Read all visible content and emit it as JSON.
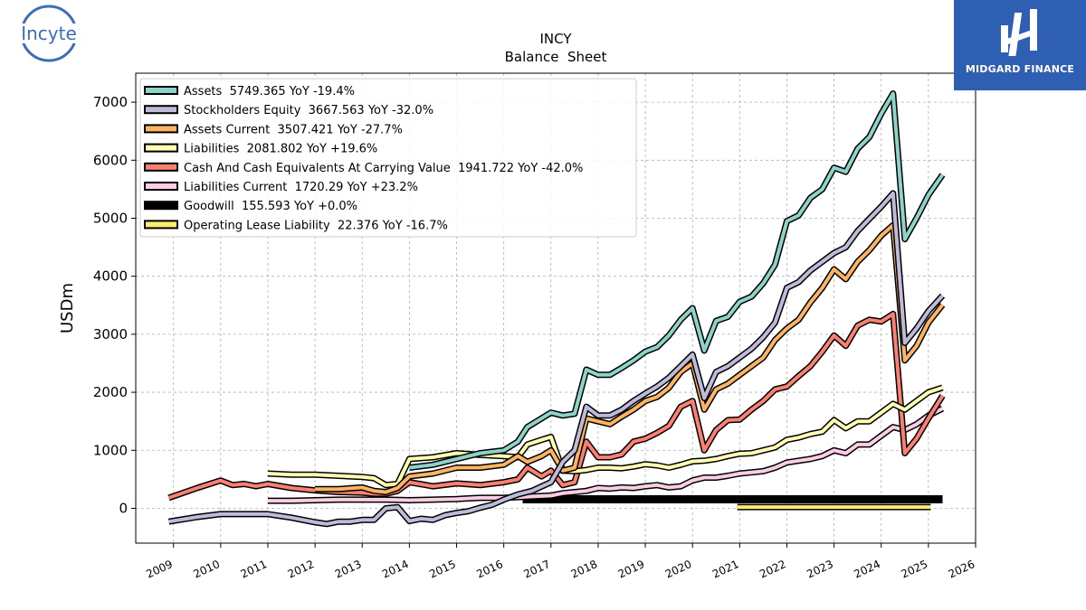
{
  "chart_data": {
    "type": "line",
    "title": "INCY",
    "subtitle": "Balance  Sheet",
    "ylabel": "USDm",
    "xlabel": "",
    "xlim": [
      2008.2,
      2026.0
    ],
    "ylim": [
      -600,
      7500
    ],
    "x_ticks": [
      "2009",
      "2010",
      "2011",
      "2012",
      "2013",
      "2014",
      "2015",
      "2016",
      "2017",
      "2018",
      "2019",
      "2020",
      "2021",
      "2022",
      "2023",
      "2024",
      "2025",
      "2026"
    ],
    "y_ticks": [
      "0",
      "1000",
      "2000",
      "3000",
      "4000",
      "5000",
      "6000",
      "7000"
    ],
    "grid": true,
    "legend_position": "top-left",
    "series": [
      {
        "name": "Assets",
        "legend": "Assets  5749.365 YoY -19.4%",
        "color": "#8dd3c7",
        "x": [
          2014.0,
          2014.5,
          2015.0,
          2015.5,
          2016.0,
          2016.3,
          2016.5,
          2016.8,
          2017.0,
          2017.25,
          2017.5,
          2017.75,
          2018.0,
          2018.25,
          2018.5,
          2018.75,
          2019.0,
          2019.25,
          2019.5,
          2019.75,
          2020.0,
          2020.25,
          2020.5,
          2020.75,
          2021.0,
          2021.25,
          2021.5,
          2021.75,
          2022.0,
          2022.25,
          2022.5,
          2022.75,
          2023.0,
          2023.25,
          2023.5,
          2023.75,
          2024.0,
          2024.25,
          2024.5,
          2024.75,
          2025.0,
          2025.3
        ],
        "y": [
          700,
          750,
          850,
          950,
          1000,
          1150,
          1400,
          1550,
          1650,
          1600,
          1630,
          2390,
          2300,
          2300,
          2420,
          2550,
          2700,
          2780,
          2980,
          3250,
          3450,
          2720,
          3230,
          3300,
          3560,
          3650,
          3880,
          4200,
          4950,
          5050,
          5350,
          5500,
          5870,
          5800,
          6200,
          6400,
          6800,
          7150,
          4640,
          5000,
          5400,
          5749
        ]
      },
      {
        "name": "Stockholders Equity",
        "legend": "Stockholders Equity  3667.563 YoY -32.0%",
        "color": "#bebada",
        "x": [
          2008.9,
          2009.5,
          2010.0,
          2010.5,
          2011.0,
          2011.5,
          2012.0,
          2012.25,
          2012.5,
          2012.75,
          2013.0,
          2013.25,
          2013.5,
          2013.75,
          2014.0,
          2014.25,
          2014.5,
          2014.75,
          2015.0,
          2015.25,
          2015.5,
          2015.75,
          2016.0,
          2016.3,
          2016.6,
          2017.0,
          2017.25,
          2017.5,
          2017.75,
          2018.0,
          2018.25,
          2018.5,
          2018.75,
          2019.0,
          2019.25,
          2019.5,
          2019.75,
          2020.0,
          2020.25,
          2020.5,
          2020.75,
          2021.0,
          2021.25,
          2021.5,
          2021.75,
          2022.0,
          2022.25,
          2022.5,
          2022.75,
          2023.0,
          2023.25,
          2023.5,
          2023.75,
          2024.0,
          2024.25,
          2024.5,
          2024.75,
          2025.0,
          2025.3
        ],
        "y": [
          -230,
          -150,
          -100,
          -100,
          -100,
          -160,
          -240,
          -270,
          -230,
          -230,
          -200,
          -200,
          0,
          20,
          -220,
          -180,
          -200,
          -120,
          -80,
          -50,
          10,
          60,
          150,
          240,
          300,
          450,
          800,
          1000,
          1750,
          1600,
          1600,
          1700,
          1850,
          1980,
          2100,
          2250,
          2450,
          2650,
          1900,
          2350,
          2450,
          2600,
          2750,
          2950,
          3200,
          3800,
          3900,
          4100,
          4250,
          4400,
          4500,
          4780,
          4990,
          5200,
          5430,
          2850,
          3100,
          3400,
          3667
        ]
      },
      {
        "name": "Assets Current",
        "legend": "Assets Current  3507.421 YoY -27.7%",
        "color": "#fdb462",
        "x": [
          2012.0,
          2012.5,
          2013.0,
          2013.25,
          2013.5,
          2013.75,
          2014.0,
          2014.5,
          2015.0,
          2015.5,
          2016.0,
          2016.3,
          2016.5,
          2016.8,
          2017.0,
          2017.25,
          2017.5,
          2017.75,
          2018.0,
          2018.25,
          2018.5,
          2018.75,
          2019.0,
          2019.25,
          2019.5,
          2019.75,
          2020.0,
          2020.25,
          2020.5,
          2020.75,
          2021.0,
          2021.25,
          2021.5,
          2021.75,
          2022.0,
          2022.25,
          2022.5,
          2022.75,
          2023.0,
          2023.25,
          2023.5,
          2023.75,
          2024.0,
          2024.25,
          2024.5,
          2024.75,
          2025.0,
          2025.3
        ],
        "y": [
          330,
          330,
          360,
          300,
          280,
          350,
          550,
          600,
          700,
          700,
          750,
          900,
          800,
          900,
          1000,
          650,
          700,
          1550,
          1500,
          1450,
          1580,
          1700,
          1850,
          1920,
          2080,
          2350,
          2500,
          1700,
          2050,
          2150,
          2300,
          2450,
          2600,
          2900,
          3100,
          3250,
          3550,
          3800,
          4120,
          3950,
          4250,
          4450,
          4700,
          4880,
          2550,
          2800,
          3200,
          3507
        ]
      },
      {
        "name": "Liabilities",
        "legend": "Liabilities  2081.802 YoY +19.6%",
        "color": "#ffffb3",
        "x": [
          2011.0,
          2011.5,
          2012.0,
          2012.5,
          2013.0,
          2013.25,
          2013.5,
          2013.75,
          2014.0,
          2014.5,
          2015.0,
          2015.5,
          2016.0,
          2016.3,
          2016.5,
          2016.8,
          2017.0,
          2017.25,
          2017.5,
          2017.75,
          2018.0,
          2018.25,
          2018.5,
          2018.75,
          2019.0,
          2019.25,
          2019.5,
          2019.75,
          2020.0,
          2020.25,
          2020.5,
          2020.75,
          2021.0,
          2021.25,
          2021.5,
          2021.75,
          2022.0,
          2022.25,
          2022.5,
          2022.75,
          2023.0,
          2023.25,
          2023.5,
          2023.75,
          2024.0,
          2024.25,
          2024.5,
          2024.75,
          2025.0,
          2025.3
        ],
        "y": [
          600,
          580,
          580,
          560,
          540,
          520,
          400,
          420,
          850,
          880,
          950,
          920,
          900,
          880,
          1100,
          1180,
          1230,
          650,
          640,
          660,
          700,
          700,
          690,
          720,
          760,
          740,
          700,
          750,
          810,
          820,
          850,
          900,
          940,
          950,
          1000,
          1050,
          1180,
          1220,
          1280,
          1320,
          1520,
          1380,
          1500,
          1500,
          1650,
          1800,
          1700,
          1850,
          2000,
          2081
        ]
      },
      {
        "name": "Cash And Cash Equivalents At Carrying Value",
        "legend": "Cash And Cash Equivalents At Carrying Value  1941.722 YoY -42.0%",
        "color": "#fb8072",
        "x": [
          2008.9,
          2009.5,
          2010.0,
          2010.25,
          2010.5,
          2010.75,
          2011.0,
          2011.5,
          2012.0,
          2012.5,
          2013.0,
          2013.25,
          2013.5,
          2013.75,
          2014.0,
          2014.5,
          2015.0,
          2015.5,
          2016.0,
          2016.3,
          2016.5,
          2016.8,
          2017.0,
          2017.25,
          2017.5,
          2017.75,
          2018.0,
          2018.25,
          2018.5,
          2018.75,
          2019.0,
          2019.25,
          2019.5,
          2019.75,
          2020.0,
          2020.25,
          2020.5,
          2020.75,
          2021.0,
          2021.25,
          2021.5,
          2021.75,
          2022.0,
          2022.25,
          2022.5,
          2022.75,
          2023.0,
          2023.25,
          2023.5,
          2023.75,
          2024.0,
          2024.25,
          2024.5,
          2024.75,
          2025.0,
          2025.3
        ],
        "y": [
          180,
          350,
          480,
          400,
          420,
          380,
          420,
          350,
          310,
          280,
          270,
          250,
          250,
          300,
          450,
          380,
          430,
          400,
          450,
          500,
          700,
          550,
          650,
          400,
          450,
          1150,
          880,
          880,
          930,
          1150,
          1200,
          1300,
          1420,
          1750,
          1850,
          1000,
          1350,
          1520,
          1530,
          1700,
          1850,
          2050,
          2100,
          2280,
          2450,
          2700,
          2980,
          2800,
          3150,
          3250,
          3220,
          3350,
          950,
          1200,
          1550,
          1941
        ]
      },
      {
        "name": "Liabilities Current",
        "legend": "Liabilities Current  1720.29 YoY +23.2%",
        "color": "#fccde5",
        "x": [
          2011.0,
          2011.5,
          2012.0,
          2012.5,
          2013.0,
          2013.5,
          2014.0,
          2014.5,
          2015.0,
          2015.5,
          2016.0,
          2016.5,
          2017.0,
          2017.25,
          2017.5,
          2017.75,
          2018.0,
          2018.25,
          2018.5,
          2018.75,
          2019.0,
          2019.25,
          2019.5,
          2019.75,
          2020.0,
          2020.25,
          2020.5,
          2020.75,
          2021.0,
          2021.25,
          2021.5,
          2021.75,
          2022.0,
          2022.25,
          2022.5,
          2022.75,
          2023.0,
          2023.25,
          2023.5,
          2023.75,
          2024.0,
          2024.25,
          2024.5,
          2024.75,
          2025.0,
          2025.3
        ],
        "y": [
          130,
          130,
          140,
          150,
          150,
          150,
          140,
          150,
          160,
          180,
          180,
          200,
          220,
          260,
          280,
          300,
          350,
          340,
          360,
          350,
          380,
          400,
          360,
          380,
          480,
          530,
          530,
          560,
          600,
          620,
          640,
          700,
          790,
          820,
          850,
          900,
          1000,
          950,
          1100,
          1100,
          1250,
          1400,
          1350,
          1450,
          1600,
          1720
        ]
      },
      {
        "name": "Goodwill",
        "legend": "Goodwill  155.593 YoY +0.0%",
        "color": "#000000",
        "x": [
          2016.4,
          2025.3
        ],
        "y": [
          155.593,
          155.593
        ]
      },
      {
        "name": "Operating Lease Liability",
        "legend": "Operating Lease Liability  22.376 YoY -16.7%",
        "color": "#ffed6f",
        "x": [
          2020.95,
          2025.05
        ],
        "y": [
          22,
          22
        ]
      }
    ]
  },
  "logos": {
    "left_text": "Incyte",
    "left_color": "#3a6fb7",
    "right_text": "MIDGARD FINANCE",
    "right_bg": "#2f5fb3"
  }
}
